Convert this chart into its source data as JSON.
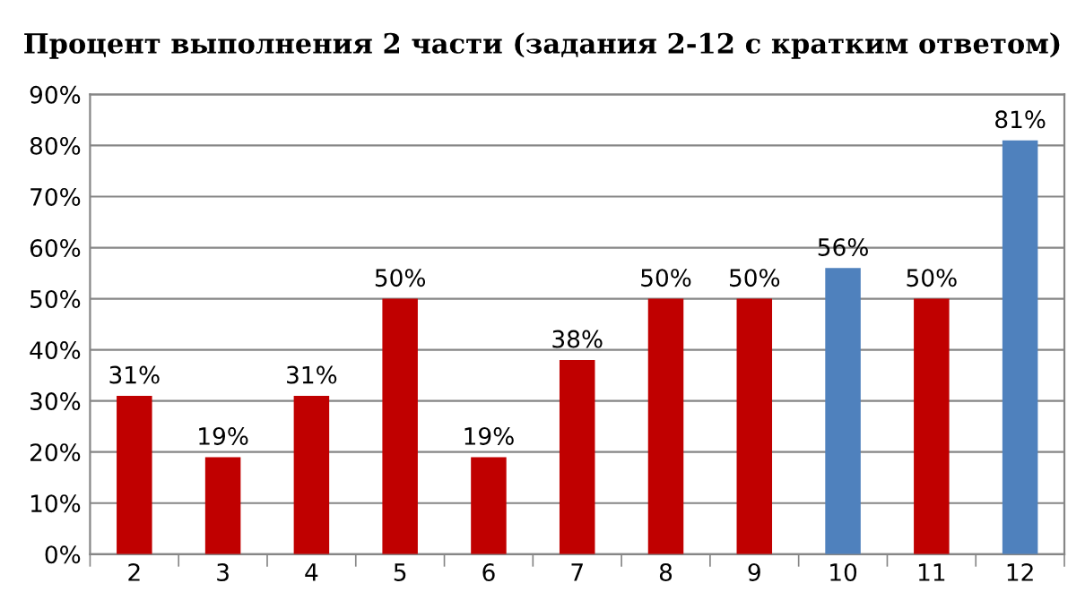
{
  "chart_data": {
    "type": "bar",
    "title": "Процент выполнения 2 части (задания 2-12 с кратким ответом)",
    "categories": [
      "2",
      "3",
      "4",
      "5",
      "6",
      "7",
      "8",
      "9",
      "10",
      "11",
      "12"
    ],
    "values": [
      31,
      19,
      31,
      50,
      19,
      38,
      50,
      50,
      56,
      50,
      81
    ],
    "colors": [
      "#c00000",
      "#c00000",
      "#c00000",
      "#c00000",
      "#c00000",
      "#c00000",
      "#c00000",
      "#c00000",
      "#4f81bd",
      "#c00000",
      "#4f81bd"
    ],
    "value_labels": [
      "31%",
      "19%",
      "31%",
      "50%",
      "19%",
      "38%",
      "50%",
      "50%",
      "56%",
      "50%",
      "81%"
    ],
    "ylim": [
      0,
      90
    ],
    "yticks": [
      {
        "value": 0,
        "label": "0%"
      },
      {
        "value": 10,
        "label": "10%"
      },
      {
        "value": 20,
        "label": "20%"
      },
      {
        "value": 30,
        "label": "30%"
      },
      {
        "value": 40,
        "label": "40%"
      },
      {
        "value": 50,
        "label": "50%"
      },
      {
        "value": 60,
        "label": "60%"
      },
      {
        "value": 70,
        "label": "70%"
      },
      {
        "value": 80,
        "label": "80%"
      },
      {
        "value": 90,
        "label": "90%"
      }
    ],
    "grid": "y",
    "legend": false
  }
}
